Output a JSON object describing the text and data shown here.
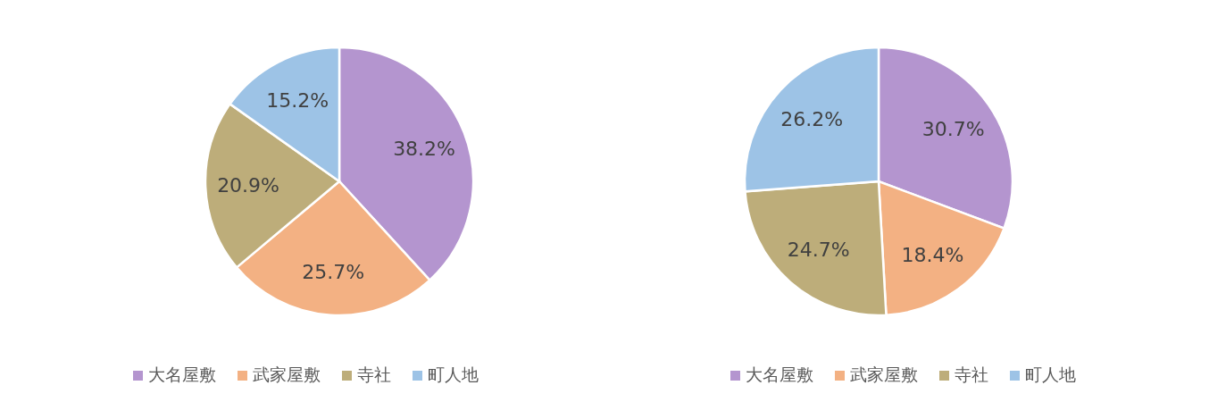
{
  "chart_data": [
    {
      "type": "pie",
      "categories": [
        "大名屋敷",
        "武家屋敷",
        "寺社",
        "町人地"
      ],
      "values": [
        38.2,
        25.7,
        20.9,
        15.2
      ],
      "colors": [
        "#b495cf",
        "#f3b183",
        "#bdad7a",
        "#9dc3e6"
      ],
      "value_labels": [
        "38.2%",
        "25.7%",
        "20.9%",
        "15.2%"
      ],
      "legend": "bottom"
    },
    {
      "type": "pie",
      "categories": [
        "大名屋敷",
        "武家屋敷",
        "寺社",
        "町人地"
      ],
      "values": [
        30.7,
        18.4,
        24.7,
        26.2
      ],
      "colors": [
        "#b495cf",
        "#f3b183",
        "#bdad7a",
        "#9dc3e6"
      ],
      "value_labels": [
        "30.7%",
        "18.4%",
        "24.7%",
        "26.2%"
      ],
      "legend": "bottom"
    }
  ]
}
